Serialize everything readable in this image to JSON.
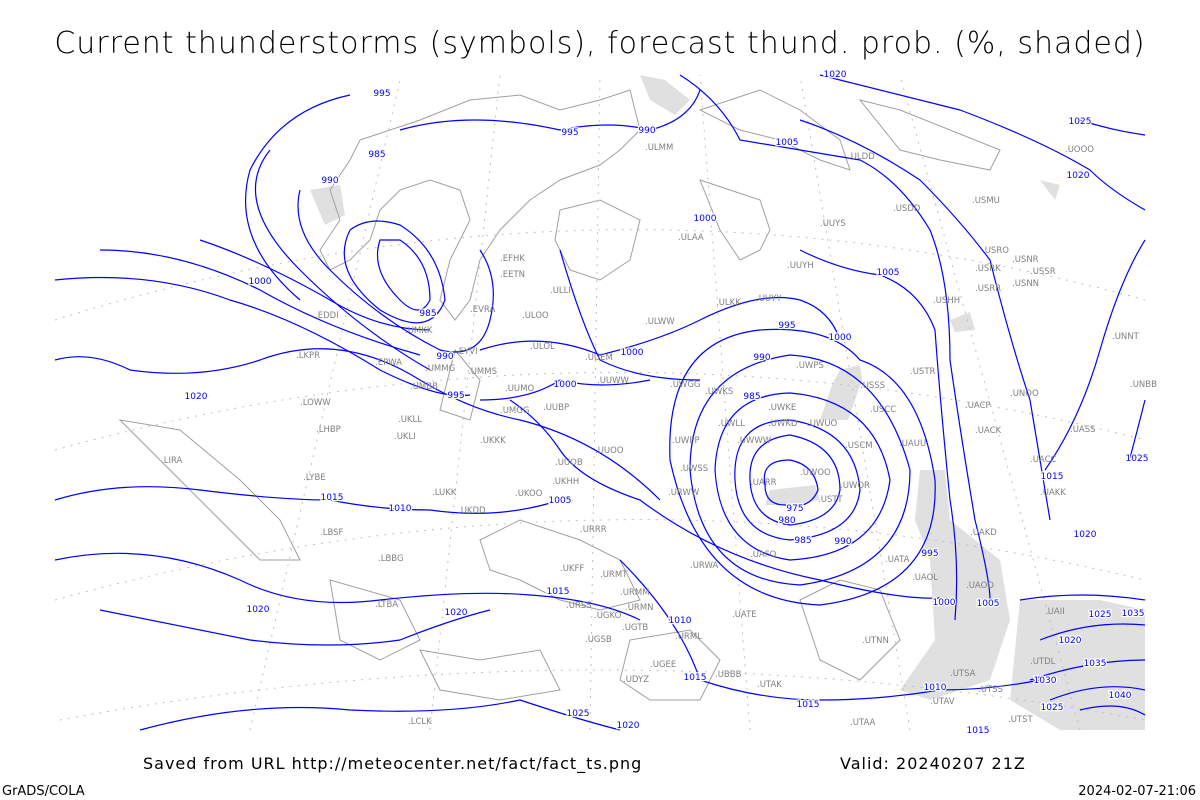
{
  "title": "Current thunderstorms (symbols), forecast thund. prob. (%, shaded)",
  "footer": {
    "saved_from": "Saved from URL http://meteocenter.net/fact/fact_ts.png",
    "valid": "Valid: 20240207 21Z",
    "software": "GrADS/COLA",
    "timestamp": "2024-02-07-21:06"
  },
  "colors": {
    "isobar": "#0000ff",
    "station": "#808080",
    "shading": "#e0e0e0",
    "coast": "#a0a0a0"
  },
  "isobar_labels": [
    "995",
    "995",
    "990",
    "1020",
    "1025",
    "1005",
    "985",
    "990",
    "1000",
    "1000",
    "1005",
    "1020",
    "985",
    "990",
    "995",
    "1000",
    "1000",
    "995",
    "990",
    "985",
    "975",
    "980",
    "985",
    "990",
    "1000",
    "1005",
    "1010",
    "1015",
    "1015",
    "1020",
    "1020",
    "1020",
    "1010",
    "1015",
    "1015",
    "1020",
    "1025",
    "995",
    "1000",
    "1005",
    "1015",
    "1025",
    "1020",
    "1010",
    "1025",
    "1035",
    "1030",
    "1035",
    "1040",
    "1025",
    "1015",
    "1020"
  ],
  "stations": [
    "ULLI",
    "ULOO",
    "ULOL",
    "UUEM",
    "UUWW",
    "ULWW",
    "ULAA",
    "ULKK",
    "UUYY",
    "UUYH",
    "UUYS",
    "ULDD",
    "USDD",
    "USMU",
    "USRO",
    "USRK",
    "USRR",
    "USNR",
    "USNN",
    "USHH",
    "USTR",
    "USSS",
    "USCC",
    "UAUU",
    "USCM",
    "UWOR",
    "UWOO",
    "USTT",
    "UARR",
    "UWWW",
    "UWKD",
    "UWUO",
    "UWKE",
    "UWKS",
    "UWLL",
    "UWGG",
    "UWPP",
    "UWSS",
    "URWW",
    "URRR",
    "UKHH",
    "UKOO",
    "UUOO",
    "UUOB",
    "UUBP",
    "UMGG",
    "UUMO",
    "UMMS",
    "UMKK",
    "UMMG",
    "UMBB",
    "EYVI",
    "EVRA",
    "EETN",
    "EFHK",
    "UKKK",
    "UKLL",
    "UKLI",
    "ULMM",
    "UKDD",
    "LUKK",
    "UACC",
    "UAKK",
    "UAKD",
    "UATA",
    "UAOL",
    "UAFO",
    "URWA",
    "URMT",
    "URMM",
    "URMN",
    "URML",
    "UGTB",
    "UGSB",
    "UGKO",
    "UBBB",
    "UGEE",
    "UDYZ",
    "UATE",
    "UTAK",
    "UTAA",
    "UTNN",
    "UTSA",
    "UTSS",
    "UTST",
    "UTAV",
    "UTDL",
    "UAII",
    "UAOO",
    "EPWA",
    "LKPR",
    "LOWW",
    "LHBP",
    "LIRA",
    "LYBE",
    "LBSF",
    "LBBG",
    "LTBA",
    "LCLK",
    "URSS",
    "UKFF",
    "EDDI",
    "UNNT",
    "UNBB",
    "UASS",
    "UNOO",
    "UACP",
    "UACK",
    "UOOO",
    "USSR",
    "UWPS"
  ]
}
